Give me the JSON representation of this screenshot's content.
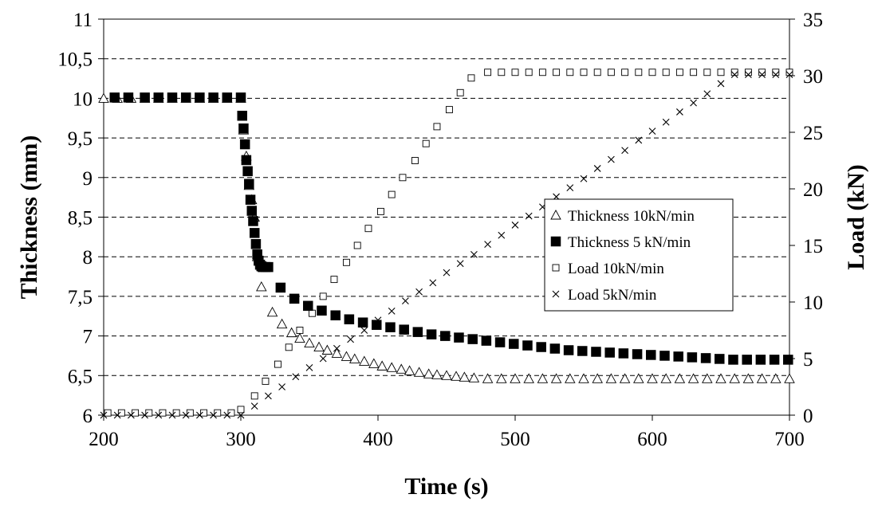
{
  "chart_data": {
    "type": "scatter",
    "xlabel": "Time (s)",
    "ylabel_left": "Thickness (mm)",
    "ylabel_right": "Load (kN)",
    "xlim": [
      200,
      700
    ],
    "ylim_left": [
      6,
      11
    ],
    "ylim_right": [
      0,
      35
    ],
    "x_ticks": [
      200,
      300,
      400,
      500,
      600,
      700
    ],
    "x_tick_labels": [
      "200",
      "300",
      "400",
      "500",
      "600",
      "700"
    ],
    "y_left_ticks": [
      6,
      6.5,
      7,
      7.5,
      8,
      8.5,
      9,
      9.5,
      10,
      10.5,
      11
    ],
    "y_left_tick_labels": [
      "6",
      "6,5",
      "7",
      "7,5",
      "8",
      "8,5",
      "9",
      "9,5",
      "10",
      "10,5",
      "11"
    ],
    "y_right_ticks": [
      0,
      5,
      10,
      15,
      20,
      25,
      30,
      35
    ],
    "y_right_tick_labels": [
      "0",
      "5",
      "10",
      "15",
      "20",
      "25",
      "30",
      "35"
    ],
    "grid": "horizontal dashed",
    "legend_position": "right-middle",
    "series": [
      {
        "name": "Thickness 10kN/min",
        "marker": "triangle-open",
        "axis": "left",
        "x": [
          200,
          210,
          220,
          230,
          240,
          250,
          260,
          270,
          280,
          290,
          300,
          302,
          304,
          306,
          308,
          310,
          312,
          315,
          323,
          330,
          337,
          343,
          350,
          357,
          363,
          370,
          377,
          383,
          390,
          397,
          403,
          410,
          417,
          423,
          430,
          437,
          443,
          450,
          457,
          463,
          470,
          480,
          490,
          500,
          510,
          520,
          530,
          540,
          550,
          560,
          570,
          580,
          590,
          600,
          610,
          620,
          630,
          640,
          650,
          660,
          670,
          680,
          690,
          700
        ],
        "y": [
          10.0,
          10.0,
          10.0,
          10.0,
          10.0,
          10.0,
          10.0,
          10.0,
          10.0,
          10.0,
          10.0,
          9.6,
          9.27,
          8.9,
          8.72,
          8.5,
          8.0,
          7.62,
          7.3,
          7.15,
          7.04,
          6.97,
          6.91,
          6.86,
          6.82,
          6.78,
          6.74,
          6.71,
          6.68,
          6.65,
          6.62,
          6.6,
          6.58,
          6.56,
          6.54,
          6.52,
          6.51,
          6.5,
          6.49,
          6.48,
          6.47,
          6.46,
          6.46,
          6.46,
          6.46,
          6.46,
          6.46,
          6.46,
          6.46,
          6.46,
          6.46,
          6.46,
          6.46,
          6.46,
          6.46,
          6.46,
          6.46,
          6.46,
          6.46,
          6.46,
          6.46,
          6.46,
          6.46,
          6.46
        ]
      },
      {
        "name": "Thickness 5 kN/min",
        "marker": "square-filled",
        "axis": "left",
        "x": [
          208,
          218,
          230,
          240,
          250,
          260,
          270,
          280,
          290,
          300,
          301,
          302,
          303,
          304,
          305,
          306,
          307,
          308,
          309,
          310,
          311,
          312,
          313,
          314,
          315,
          316,
          318,
          320,
          329,
          339,
          349,
          359,
          369,
          379,
          389,
          399,
          409,
          419,
          429,
          439,
          449,
          459,
          469,
          479,
          489,
          499,
          509,
          519,
          529,
          539,
          549,
          559,
          569,
          579,
          589,
          599,
          609,
          619,
          629,
          639,
          649,
          659,
          669,
          679,
          689,
          699
        ],
        "y": [
          10.01,
          10.01,
          10.01,
          10.01,
          10.01,
          10.01,
          10.01,
          10.01,
          10.01,
          10.01,
          9.78,
          9.62,
          9.42,
          9.22,
          9.08,
          8.92,
          8.72,
          8.58,
          8.45,
          8.3,
          8.16,
          8.03,
          7.95,
          7.9,
          7.88,
          7.87,
          7.87,
          7.87,
          7.61,
          7.47,
          7.38,
          7.32,
          7.26,
          7.21,
          7.17,
          7.14,
          7.11,
          7.08,
          7.05,
          7.02,
          7.0,
          6.98,
          6.96,
          6.94,
          6.92,
          6.9,
          6.88,
          6.86,
          6.84,
          6.82,
          6.81,
          6.8,
          6.79,
          6.78,
          6.77,
          6.76,
          6.75,
          6.74,
          6.73,
          6.72,
          6.71,
          6.7,
          6.7,
          6.7,
          6.7,
          6.7
        ]
      },
      {
        "name": "Load 10kN/min",
        "marker": "square-open",
        "axis": "right",
        "x": [
          203,
          213,
          223,
          233,
          243,
          253,
          263,
          273,
          283,
          293,
          300,
          310,
          318,
          327,
          335,
          343,
          352,
          360,
          368,
          377,
          385,
          393,
          402,
          410,
          418,
          427,
          435,
          443,
          452,
          460,
          468,
          480,
          490,
          500,
          510,
          520,
          530,
          540,
          550,
          560,
          570,
          580,
          590,
          600,
          610,
          620,
          630,
          640,
          650,
          660,
          670,
          680,
          690,
          700
        ],
        "y": [
          0.2,
          0.2,
          0.2,
          0.2,
          0.2,
          0.2,
          0.2,
          0.2,
          0.2,
          0.2,
          0.5,
          1.7,
          3.0,
          4.5,
          6.0,
          7.5,
          9.0,
          10.5,
          12.0,
          13.5,
          15.0,
          16.5,
          18.0,
          19.5,
          21.0,
          22.5,
          24.0,
          25.5,
          27.0,
          28.5,
          29.8,
          30.3,
          30.3,
          30.3,
          30.3,
          30.3,
          30.3,
          30.3,
          30.3,
          30.3,
          30.3,
          30.3,
          30.3,
          30.3,
          30.3,
          30.3,
          30.3,
          30.3,
          30.3,
          30.3,
          30.3,
          30.3,
          30.3,
          30.3
        ]
      },
      {
        "name": "Load  5kN/min",
        "marker": "x",
        "axis": "right",
        "x": [
          200,
          210,
          220,
          230,
          240,
          250,
          260,
          270,
          280,
          290,
          300,
          310,
          320,
          330,
          340,
          350,
          360,
          370,
          380,
          390,
          400,
          410,
          420,
          430,
          440,
          450,
          460,
          470,
          480,
          490,
          500,
          510,
          520,
          530,
          540,
          550,
          560,
          570,
          580,
          590,
          600,
          610,
          620,
          630,
          640,
          650,
          660,
          670,
          680,
          690,
          700
        ],
        "y": [
          0,
          0,
          0,
          0,
          0,
          0,
          0,
          0,
          0,
          0,
          0,
          0.8,
          1.7,
          2.5,
          3.4,
          4.2,
          5.0,
          5.9,
          6.7,
          7.5,
          8.4,
          9.2,
          10.1,
          10.9,
          11.7,
          12.6,
          13.4,
          14.2,
          15.1,
          15.9,
          16.8,
          17.6,
          18.4,
          19.3,
          20.1,
          20.9,
          21.8,
          22.6,
          23.4,
          24.3,
          25.1,
          25.9,
          26.8,
          27.6,
          28.4,
          29.3,
          30.1,
          30.1,
          30.1,
          30.1,
          30.1
        ]
      }
    ]
  }
}
